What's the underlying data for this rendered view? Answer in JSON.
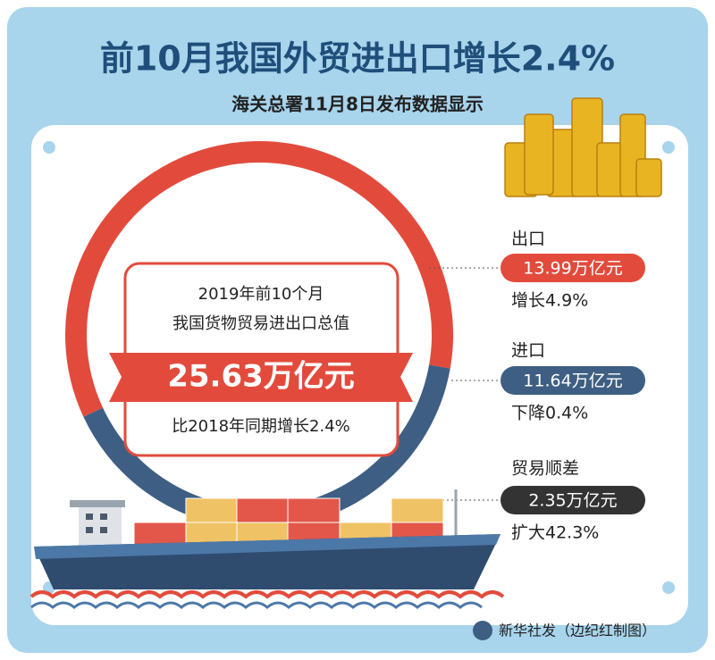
{
  "header": {
    "title": "前10月我国外贸进出口增长2.4%",
    "subtitle": "海关总署11月8日发布数据显示"
  },
  "center": {
    "line1": "2019年前10个月",
    "line2": "我国货物贸易进出口总值",
    "total": "25.63万亿元",
    "change": "比2018年同期增长2.4%"
  },
  "items": [
    {
      "label": "出口",
      "value": "13.99万亿元",
      "change": "增长4.9%"
    },
    {
      "label": "进口",
      "value": "11.64万亿元",
      "change": "下降0.4%"
    },
    {
      "label": "贸易顺差",
      "value": "2.35万亿元",
      "change": "扩大42.3%"
    }
  ],
  "footer": "新华社发（边纪红制图）"
}
